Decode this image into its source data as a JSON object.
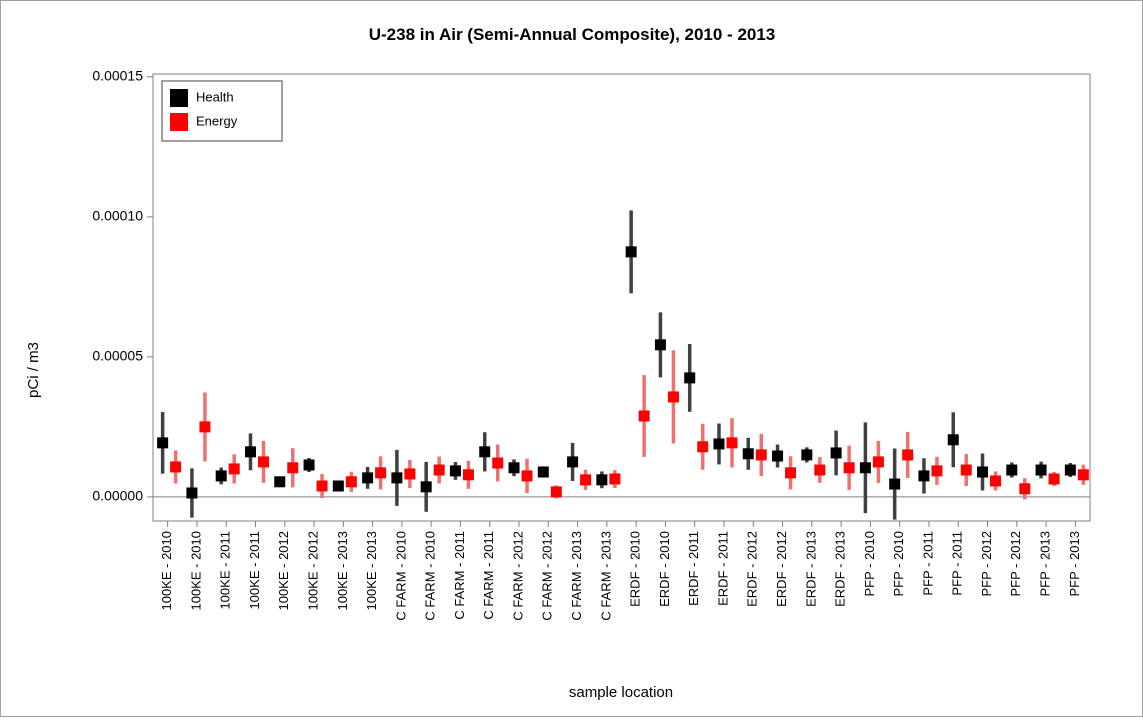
{
  "chart_data": {
    "type": "errorbar",
    "title": "U-238 in Air (Semi-Annual Composite), 2010 - 2013",
    "x_label": "sample location",
    "y_label": "pCi / m3",
    "categories": [
      "100KE - 2010",
      "100KE - 2010",
      "100KE - 2011",
      "100KE - 2011",
      "100KE - 2012",
      "100KE - 2012",
      "100KE - 2013",
      "100KE - 2013",
      "C FARM - 2010",
      "C FARM - 2010",
      "C FARM - 2011",
      "C FARM - 2011",
      "C FARM - 2012",
      "C FARM - 2012",
      "C FARM - 2013",
      "C FARM - 2013",
      "ERDF - 2010",
      "ERDF - 2010",
      "ERDF - 2011",
      "ERDF - 2011",
      "ERDF - 2012",
      "ERDF - 2012",
      "ERDF - 2013",
      "ERDF - 2013",
      "PFP - 2010",
      "PFP - 2010",
      "PFP - 2011",
      "PFP - 2011",
      "PFP - 2012",
      "PFP - 2012",
      "PFP - 2013",
      "PFP - 2013"
    ],
    "series": [
      {
        "name": "Health",
        "color": "#000000",
        "error_color": "#404040",
        "values": [
          1.93e-05,
          1.4e-06,
          7.5e-06,
          1.61e-05,
          5.4e-06,
          1.14e-05,
          3.9e-06,
          6.8e-06,
          6.8e-06,
          3.6e-06,
          9.3e-06,
          1.61e-05,
          1.04e-05,
          8.9e-06,
          1.25e-05,
          6.1e-06,
          8.75e-05,
          5.43e-05,
          4.25e-05,
          1.89e-05,
          1.54e-05,
          1.46e-05,
          1.5e-05,
          1.57e-05,
          1.04e-05,
          4.6e-06,
          7.5e-06,
          2.04e-05,
          8.9e-06,
          9.6e-06,
          9.6e-06,
          9.6e-06
        ],
        "errors": [
          1.1e-05,
          8.8e-06,
          3e-06,
          6.6e-06,
          1.6e-06,
          2.5e-06,
          1.4e-06,
          3.9e-06,
          1e-05,
          8.9e-06,
          3.2e-06,
          7e-06,
          3e-06,
          2e-06,
          6.8e-06,
          3e-06,
          1.48e-05,
          1.16e-05,
          1.21e-05,
          7.3e-06,
          5.7e-06,
          4.1e-06,
          2.7e-06,
          8e-06,
          1.62e-05,
          1.27e-05,
          6.3e-06,
          9.8e-06,
          6.6e-06,
          2.7e-06,
          3e-06,
          2.5e-06
        ]
      },
      {
        "name": "Energy",
        "color": "#ff0000",
        "error_color": "#f07070",
        "values": [
          1.07e-05,
          2.5e-05,
          1e-05,
          1.25e-05,
          1.04e-05,
          3.9e-06,
          5.4e-06,
          8.6e-06,
          8.2e-06,
          9.6e-06,
          7.9e-06,
          1.21e-05,
          7.5e-06,
          1.8e-06,
          6.1e-06,
          6.4e-06,
          2.89e-05,
          3.57e-05,
          1.79e-05,
          1.93e-05,
          1.5e-05,
          8.6e-06,
          9.6e-06,
          1.04e-05,
          1.25e-05,
          1.5e-05,
          9.3e-06,
          9.6e-06,
          5.7e-06,
          2.9e-06,
          6.4e-06,
          7.9e-06
        ],
        "errors": [
          5.9e-06,
          1.23e-05,
          5.2e-06,
          7.5e-06,
          7e-06,
          4.3e-06,
          3.6e-06,
          5.9e-06,
          5e-06,
          4.8e-06,
          5e-06,
          6.6e-06,
          6.1e-06,
          2.3e-06,
          3.6e-06,
          3.2e-06,
          1.46e-05,
          1.66e-05,
          8.2e-06,
          8.8e-06,
          7.5e-06,
          5.9e-06,
          4.6e-06,
          7.9e-06,
          7.5e-06,
          8.2e-06,
          5e-06,
          5.7e-06,
          3.4e-06,
          3.8e-06,
          2.5e-06,
          3.6e-06
        ]
      }
    ],
    "ylim": [
      -8.6e-06,
      0.000151
    ],
    "yticks": [
      {
        "value": 0,
        "label": "0.00000"
      },
      {
        "value": 5e-05,
        "label": "0.00005"
      },
      {
        "value": 0.0001,
        "label": "0.00010"
      },
      {
        "value": 0.00015,
        "label": "0.00015"
      }
    ],
    "zero_line": true,
    "legend": "top-left"
  }
}
